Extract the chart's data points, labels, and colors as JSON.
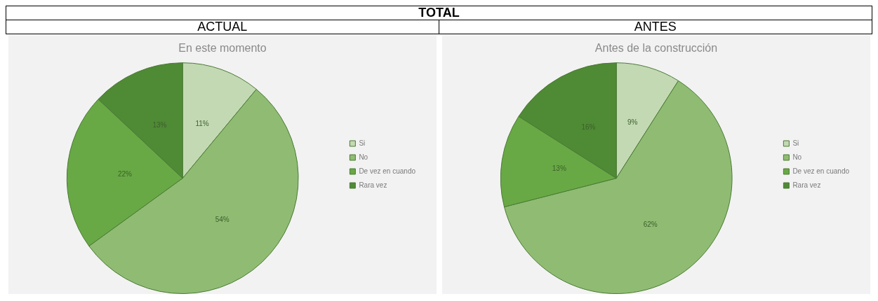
{
  "chart_data": [
    {
      "type": "pie",
      "annotations": [
        "TOTAL"
      ],
      "subtitle": "ACTUAL",
      "title": "En este momento",
      "categories": [
        "Si",
        "No",
        "De vez en cuando",
        "Rara vez"
      ],
      "values": [
        11,
        54,
        22,
        13
      ],
      "value_labels": [
        "11%",
        "54%",
        "22%",
        "13%"
      ],
      "colors": [
        "#c3d9b3",
        "#8fbc72",
        "#68a945",
        "#4f8a35"
      ],
      "legend": "right"
    },
    {
      "type": "pie",
      "subtitle": "ANTES",
      "title": "Antes de la construcción",
      "categories": [
        "Si",
        "No",
        "De vez en cuando",
        "Rara vez"
      ],
      "values": [
        9,
        62,
        13,
        16
      ],
      "value_labels": [
        "9%",
        "62%",
        "13%",
        "16%"
      ],
      "colors": [
        "#c3d9b3",
        "#8fbc72",
        "#68a945",
        "#4f8a35"
      ],
      "legend": "right"
    }
  ]
}
